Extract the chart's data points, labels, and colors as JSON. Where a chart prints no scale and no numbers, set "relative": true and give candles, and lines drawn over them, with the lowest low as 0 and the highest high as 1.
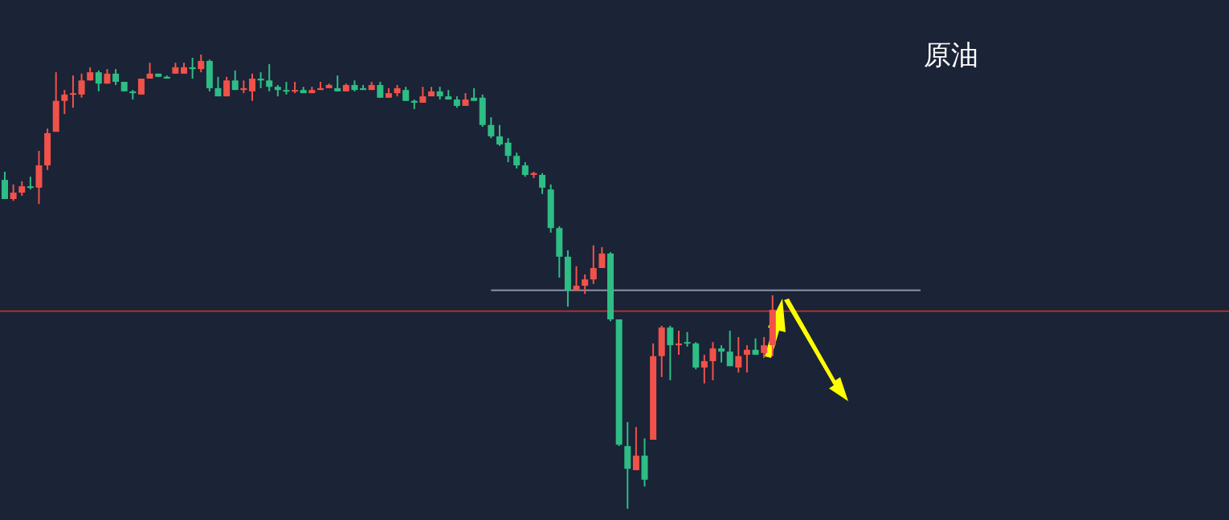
{
  "chart_data": {
    "type": "candlestick",
    "title": "原油",
    "relative": true,
    "categories": [
      null,
      null,
      null,
      null,
      null,
      null,
      null,
      null,
      null,
      null,
      null,
      null,
      null,
      null,
      null,
      null,
      null,
      null,
      null,
      null,
      null,
      null,
      null,
      null,
      null,
      null,
      null,
      null,
      null,
      null,
      null,
      null,
      null,
      null,
      null,
      null,
      null,
      null,
      null,
      null,
      null,
      null,
      null,
      null,
      null,
      null,
      null,
      null,
      null,
      null,
      null,
      null,
      null,
      null,
      null,
      null,
      null,
      null,
      null,
      null,
      null,
      null,
      null,
      null,
      null,
      null,
      null,
      null,
      null,
      null,
      null,
      null,
      null,
      null,
      null,
      null,
      null,
      null,
      null,
      null,
      null,
      null,
      null,
      null,
      null,
      null,
      null,
      null,
      null,
      null,
      null
    ],
    "ohlc": [
      [
        0.724,
        0.742,
        0.682,
        0.682
      ],
      [
        0.682,
        0.714,
        0.678,
        0.696
      ],
      [
        0.696,
        0.721,
        0.689,
        0.71
      ],
      [
        0.71,
        0.731,
        0.703,
        0.707
      ],
      [
        0.707,
        0.788,
        0.671,
        0.756
      ],
      [
        0.756,
        0.837,
        0.746,
        0.827
      ],
      [
        0.83,
        0.961,
        0.83,
        0.898
      ],
      [
        0.898,
        0.922,
        0.869,
        0.912
      ],
      [
        0.912,
        0.954,
        0.883,
        0.915
      ],
      [
        0.912,
        0.958,
        0.905,
        0.943
      ],
      [
        0.943,
        0.972,
        0.943,
        0.961
      ],
      [
        0.961,
        0.965,
        0.919,
        0.936
      ],
      [
        0.936,
        0.968,
        0.936,
        0.958
      ],
      [
        0.958,
        0.968,
        0.933,
        0.94
      ],
      [
        0.94,
        0.94,
        0.919,
        0.919
      ],
      [
        0.919,
        0.922,
        0.901,
        0.915
      ],
      [
        0.912,
        0.947,
        0.912,
        0.947
      ],
      [
        0.947,
        0.982,
        0.947,
        0.958
      ],
      [
        0.958,
        0.958,
        0.951,
        0.951
      ],
      [
        0.951,
        0.954,
        0.947,
        0.947
      ],
      [
        0.958,
        0.982,
        0.958,
        0.972
      ],
      [
        0.958,
        0.982,
        0.958,
        0.972
      ],
      [
        0.972,
        0.993,
        0.947,
        0.968
      ],
      [
        0.968,
        1.0,
        0.961,
        0.986
      ],
      [
        0.986,
        0.989,
        0.919,
        0.926
      ],
      [
        0.926,
        0.951,
        0.908,
        0.908
      ],
      [
        0.908,
        0.951,
        0.908,
        0.943
      ],
      [
        0.943,
        0.965,
        0.922,
        0.922
      ],
      [
        0.922,
        0.943,
        0.915,
        0.926
      ],
      [
        0.919,
        0.958,
        0.898,
        0.947
      ],
      [
        0.947,
        0.961,
        0.926,
        0.943
      ],
      [
        0.943,
        0.979,
        0.919,
        0.929
      ],
      [
        0.929,
        0.933,
        0.908,
        0.922
      ],
      [
        0.922,
        0.94,
        0.912,
        0.919
      ],
      [
        0.919,
        0.94,
        0.915,
        0.922
      ],
      [
        0.922,
        0.929,
        0.915,
        0.915
      ],
      [
        0.915,
        0.929,
        0.915,
        0.922
      ],
      [
        0.922,
        0.94,
        0.922,
        0.926
      ],
      [
        0.926,
        0.936,
        0.926,
        0.933
      ],
      [
        0.926,
        0.954,
        0.919,
        0.919
      ],
      [
        0.919,
        0.936,
        0.919,
        0.933
      ],
      [
        0.933,
        0.943,
        0.919,
        0.922
      ],
      [
        0.926,
        0.933,
        0.922,
        0.922
      ],
      [
        0.922,
        0.94,
        0.922,
        0.933
      ],
      [
        0.933,
        0.94,
        0.905,
        0.905
      ],
      [
        0.905,
        0.926,
        0.905,
        0.915
      ],
      [
        0.915,
        0.933,
        0.908,
        0.926
      ],
      [
        0.922,
        0.929,
        0.898,
        0.898
      ],
      [
        0.898,
        0.901,
        0.88,
        0.894
      ],
      [
        0.894,
        0.929,
        0.894,
        0.908
      ],
      [
        0.908,
        0.929,
        0.908,
        0.919
      ],
      [
        0.919,
        0.929,
        0.901,
        0.908
      ],
      [
        0.908,
        0.922,
        0.901,
        0.901
      ],
      [
        0.901,
        0.908,
        0.883,
        0.887
      ],
      [
        0.887,
        0.915,
        0.887,
        0.901
      ],
      [
        0.905,
        0.926,
        0.898,
        0.898
      ],
      [
        0.905,
        0.912,
        0.841,
        0.845
      ],
      [
        0.845,
        0.862,
        0.816,
        0.82
      ],
      [
        0.82,
        0.845,
        0.799,
        0.802
      ],
      [
        0.806,
        0.816,
        0.763,
        0.777
      ],
      [
        0.777,
        0.784,
        0.749,
        0.756
      ],
      [
        0.756,
        0.763,
        0.731,
        0.735
      ],
      [
        0.735,
        0.742,
        0.728,
        0.739
      ],
      [
        0.735,
        0.739,
        0.693,
        0.707
      ],
      [
        0.703,
        0.714,
        0.608,
        0.618
      ],
      [
        0.618,
        0.622,
        0.509,
        0.555
      ],
      [
        0.555,
        0.569,
        0.445,
        0.481
      ],
      [
        0.481,
        0.534,
        0.481,
        0.491
      ],
      [
        0.491,
        0.516,
        0.473,
        0.505
      ],
      [
        0.505,
        0.58,
        0.495,
        0.53
      ],
      [
        0.53,
        0.576,
        0.53,
        0.562
      ],
      [
        0.562,
        0.565,
        0.413,
        0.417
      ],
      [
        0.417,
        0.417,
        0.138,
        0.141
      ],
      [
        0.138,
        0.191,
        0.0,
        0.088
      ],
      [
        0.085,
        0.18,
        0.085,
        0.117
      ],
      [
        0.117,
        0.155,
        0.049,
        0.064
      ],
      [
        0.152,
        0.364,
        0.152,
        0.336
      ],
      [
        0.336,
        0.403,
        0.29,
        0.399
      ],
      [
        0.399,
        0.403,
        0.283,
        0.36
      ],
      [
        0.36,
        0.392,
        0.339,
        0.364
      ],
      [
        0.367,
        0.389,
        0.357,
        0.364
      ],
      [
        0.364,
        0.367,
        0.307,
        0.311
      ],
      [
        0.311,
        0.339,
        0.276,
        0.325
      ],
      [
        0.325,
        0.367,
        0.283,
        0.353
      ],
      [
        0.353,
        0.36,
        0.322,
        0.346
      ],
      [
        0.346,
        0.392,
        0.314,
        0.314
      ],
      [
        0.311,
        0.378,
        0.3,
        0.336
      ],
      [
        0.339,
        0.36,
        0.3,
        0.35
      ],
      [
        0.35,
        0.375,
        0.339,
        0.339
      ],
      [
        0.343,
        0.378,
        0.332,
        0.36
      ],
      [
        0.36,
        0.47,
        0.336,
        0.438
      ]
    ],
    "colors": [
      "#2dbd85",
      "#f0524a",
      "#f0524a",
      "#2dbd85",
      "#f0524a",
      "#f0524a",
      "#f0524a",
      "#f0524a",
      "#f0524a",
      "#f0524a",
      "#f0524a",
      "#2dbd85",
      "#f0524a",
      "#2dbd85",
      "#2dbd85",
      "#2dbd85",
      "#f0524a",
      "#f0524a",
      "#2dbd85",
      "#2dbd85",
      "#f0524a",
      "#f0524a",
      "#2dbd85",
      "#f0524a",
      "#2dbd85",
      "#2dbd85",
      "#f0524a",
      "#2dbd85",
      "#f0524a",
      "#f0524a",
      "#2dbd85",
      "#2dbd85",
      "#2dbd85",
      "#2dbd85",
      "#f0524a",
      "#2dbd85",
      "#f0524a",
      "#f0524a",
      "#f0524a",
      "#2dbd85",
      "#f0524a",
      "#2dbd85",
      "#2dbd85",
      "#f0524a",
      "#2dbd85",
      "#f0524a",
      "#f0524a",
      "#2dbd85",
      "#2dbd85",
      "#f0524a",
      "#f0524a",
      "#2dbd85",
      "#2dbd85",
      "#2dbd85",
      "#f0524a",
      "#2dbd85",
      "#2dbd85",
      "#2dbd85",
      "#2dbd85",
      "#2dbd85",
      "#2dbd85",
      "#2dbd85",
      "#f0524a",
      "#2dbd85",
      "#2dbd85",
      "#2dbd85",
      "#2dbd85",
      "#f0524a",
      "#f0524a",
      "#f0524a",
      "#f0524a",
      "#2dbd85",
      "#2dbd85",
      "#2dbd85",
      "#f0524a",
      "#2dbd85",
      "#f0524a",
      "#f0524a",
      "#2dbd85",
      "#f0524a",
      "#2dbd85",
      "#2dbd85",
      "#f0524a",
      "#f0524a",
      "#2dbd85",
      "#2dbd85",
      "#f0524a",
      "#f0524a",
      "#2dbd85",
      "#f0524a",
      "#f0524a"
    ],
    "ref_lines": [
      {
        "axis": "y",
        "value": 0.435,
        "color": "#a8312c"
      },
      {
        "axis": "y",
        "value": 0.481,
        "color": "#8a94a6"
      }
    ]
  }
}
